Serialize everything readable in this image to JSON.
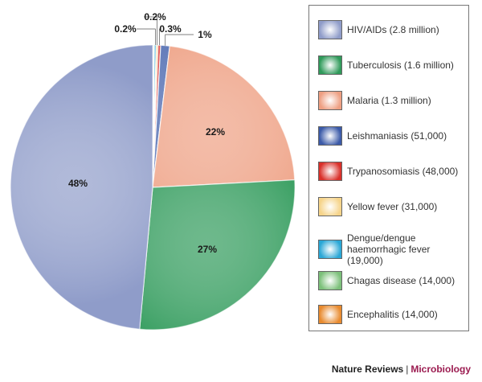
{
  "chart_data": {
    "type": "pie",
    "slices": [
      {
        "name": "HIV/AIDs (2.8 million)",
        "value": 48,
        "label": "48%",
        "color": "#8f9cc9"
      },
      {
        "name": "Tuberculosis (1.6 million)",
        "value": 27,
        "label": "27%",
        "color": "#2f9a5a"
      },
      {
        "name": "Malaria (1.3 million)",
        "value": 22,
        "label": "22%",
        "color": "#ee9f82"
      },
      {
        "name": "Leishmaniasis (51,000)",
        "value": 1,
        "label": "1%",
        "color": "#3b5aa8"
      },
      {
        "name": "Trypanosomiasis (48,000)",
        "value": 0.3,
        "label": "0.3%",
        "color": "#d9302a"
      },
      {
        "name": "Yellow fever (31,000)",
        "value": 0.2,
        "label": "0.2%",
        "color": "#f6d48a"
      },
      {
        "name": "Dengue/dengue haemorrhagic fever (19,000)",
        "value": 0.2,
        "label": "0.2%",
        "color": "#2aa7d6"
      },
      {
        "name": "Chagas disease (14,000)",
        "value": 0.1,
        "label": "",
        "color": "#7cc07a"
      },
      {
        "name": "Encephalitis (14,000)",
        "value": 0.1,
        "label": "",
        "color": "#e88a2e"
      }
    ],
    "legend_position": "right"
  },
  "legend": {
    "items": [
      {
        "label": "HIV/AIDs (2.8 million)",
        "color": "#8f9cc9"
      },
      {
        "label": "Tuberculosis (1.6 million)",
        "color": "#2f9a5a"
      },
      {
        "label": "Malaria (1.3 million)",
        "color": "#ee9f82"
      },
      {
        "label": "Leishmaniasis (51,000)",
        "color": "#3b5aa8"
      },
      {
        "label": "Trypanosomiasis (48,000)",
        "color": "#d9302a"
      },
      {
        "label": "Yellow fever (31,000)",
        "color": "#f6d48a"
      },
      {
        "label": "Dengue/dengue\nhaemorrhagic fever (19,000)",
        "color": "#2aa7d6"
      },
      {
        "label": "Chagas disease (14,000)",
        "color": "#7cc07a"
      },
      {
        "label": "Encephalitis (14,000)",
        "color": "#e88a2e"
      }
    ]
  },
  "footer": {
    "publisher": "Nature Reviews",
    "separator": "|",
    "journal": "Microbiology"
  }
}
